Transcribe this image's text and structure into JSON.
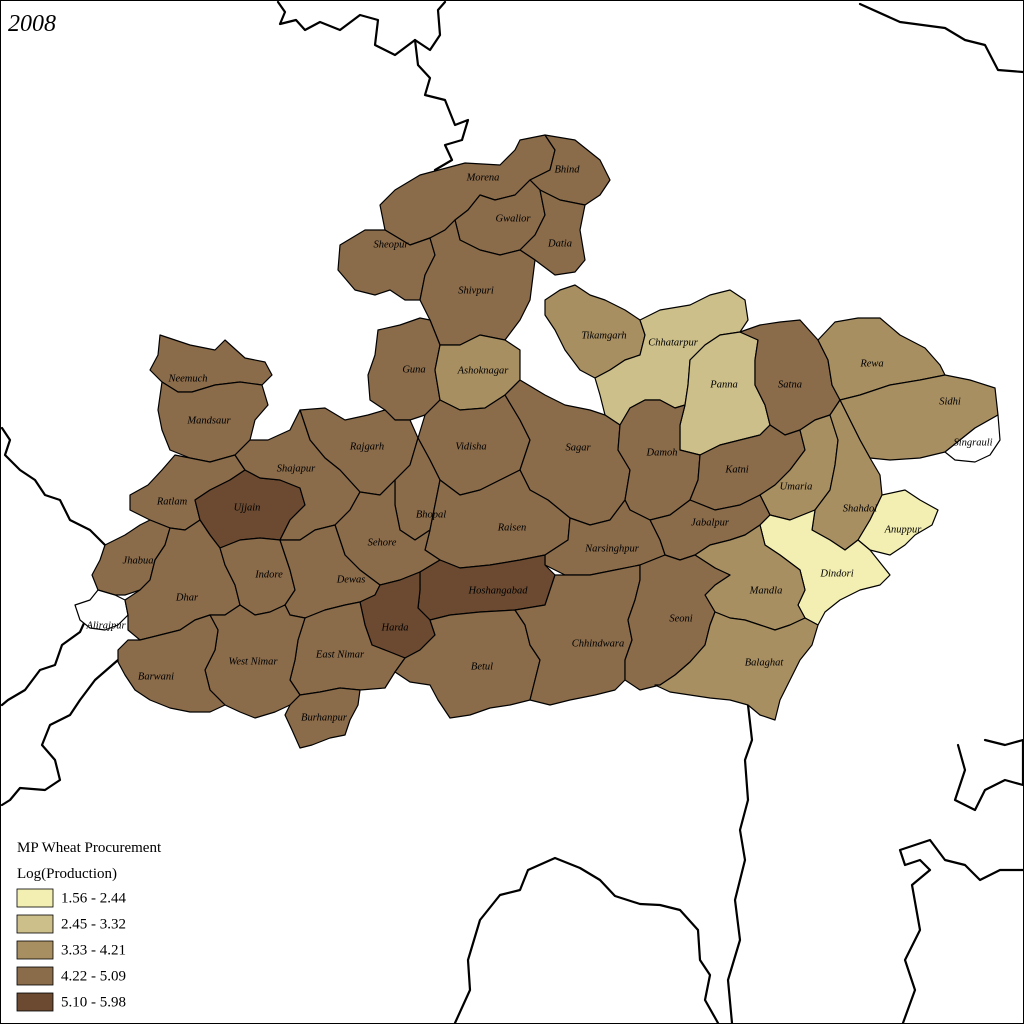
{
  "year": "2008",
  "legend": {
    "title": "MP Wheat Procurement",
    "subtitle": "Log(Production)",
    "classes": [
      {
        "label": "1.56 - 2.44",
        "color": "#f3efb2"
      },
      {
        "label": "2.45 - 3.32",
        "color": "#cdbf8a"
      },
      {
        "label": "3.33 - 4.21",
        "color": "#a88f62"
      },
      {
        "label": "4.22 - 5.09",
        "color": "#8a6b4a"
      },
      {
        "label": "5.10 - 5.98",
        "color": "#6b4a31"
      }
    ]
  },
  "districts": {
    "morena": {
      "name": "Morena",
      "class": 3
    },
    "bhind": {
      "name": "Bhind",
      "class": 3
    },
    "gwalior": {
      "name": "Gwalior",
      "class": 3
    },
    "datia": {
      "name": "Datia",
      "class": 3
    },
    "sheopur": {
      "name": "Sheopur",
      "class": 3
    },
    "shivpuri": {
      "name": "Shivpuri",
      "class": 3
    },
    "guna": {
      "name": "Guna",
      "class": 3
    },
    "ashoknagar": {
      "name": "Ashoknagar",
      "class": 2
    },
    "tikamgarh": {
      "name": "Tikamgarh",
      "class": 2
    },
    "chhatarpur": {
      "name": "Chhatarpur",
      "class": 1
    },
    "panna": {
      "name": "Panna",
      "class": 1
    },
    "satna": {
      "name": "Satna",
      "class": 3
    },
    "rewa": {
      "name": "Rewa",
      "class": 2
    },
    "sidhi": {
      "name": "Sidhi",
      "class": 2
    },
    "singrauli": {
      "name": "Singrauli",
      "class": null
    },
    "neemuch": {
      "name": "Neemuch",
      "class": 3
    },
    "mandsaur": {
      "name": "Mandsaur",
      "class": 3
    },
    "rajgarh": {
      "name": "Rajgarh",
      "class": 3
    },
    "vidisha": {
      "name": "Vidisha",
      "class": 3
    },
    "sagar": {
      "name": "Sagar",
      "class": 3
    },
    "damoh": {
      "name": "Damoh",
      "class": 3
    },
    "katni": {
      "name": "Katni",
      "class": 3
    },
    "umaria": {
      "name": "Umaria",
      "class": 2
    },
    "shahdol": {
      "name": "Shahdol",
      "class": 2
    },
    "anuppur": {
      "name": "Anuppur",
      "class": 0
    },
    "ratlam": {
      "name": "Ratlam",
      "class": 3
    },
    "ujjain": {
      "name": "Ujjain",
      "class": 4
    },
    "shajapur": {
      "name": "Shajapur",
      "class": 3
    },
    "bhopal": {
      "name": "Bhopal",
      "class": 3
    },
    "raisen": {
      "name": "Raisen",
      "class": 3
    },
    "sehore": {
      "name": "Sehore",
      "class": 3
    },
    "jabalpur": {
      "name": "Jabalpur",
      "class": 3
    },
    "narsinghpur": {
      "name": "Narsinghpur",
      "class": 3
    },
    "dindori": {
      "name": "Dindori",
      "class": 0
    },
    "mandla": {
      "name": "Mandla",
      "class": 2
    },
    "jhabua": {
      "name": "Jhabua",
      "class": 3
    },
    "alirajpur": {
      "name": "Alirajpur",
      "class": null
    },
    "dhar": {
      "name": "Dhar",
      "class": 3
    },
    "indore": {
      "name": "Indore",
      "class": 3
    },
    "dewas": {
      "name": "Dewas",
      "class": 3
    },
    "hoshangabad": {
      "name": "Hoshangabad",
      "class": 4
    },
    "harda": {
      "name": "Harda",
      "class": 4
    },
    "east_nimar": {
      "name": "East Nimar",
      "class": 3
    },
    "west_nimar": {
      "name": "West Nimar",
      "class": 3
    },
    "barwani": {
      "name": "Barwani",
      "class": 3
    },
    "burhanpur": {
      "name": "Burhanpur",
      "class": 3
    },
    "betul": {
      "name": "Betul",
      "class": 3
    },
    "chhindwara": {
      "name": "Chhindwara",
      "class": 3
    },
    "seoni": {
      "name": "Seoni",
      "class": 3
    },
    "balaghat": {
      "name": "Balaghat",
      "class": 2
    }
  }
}
